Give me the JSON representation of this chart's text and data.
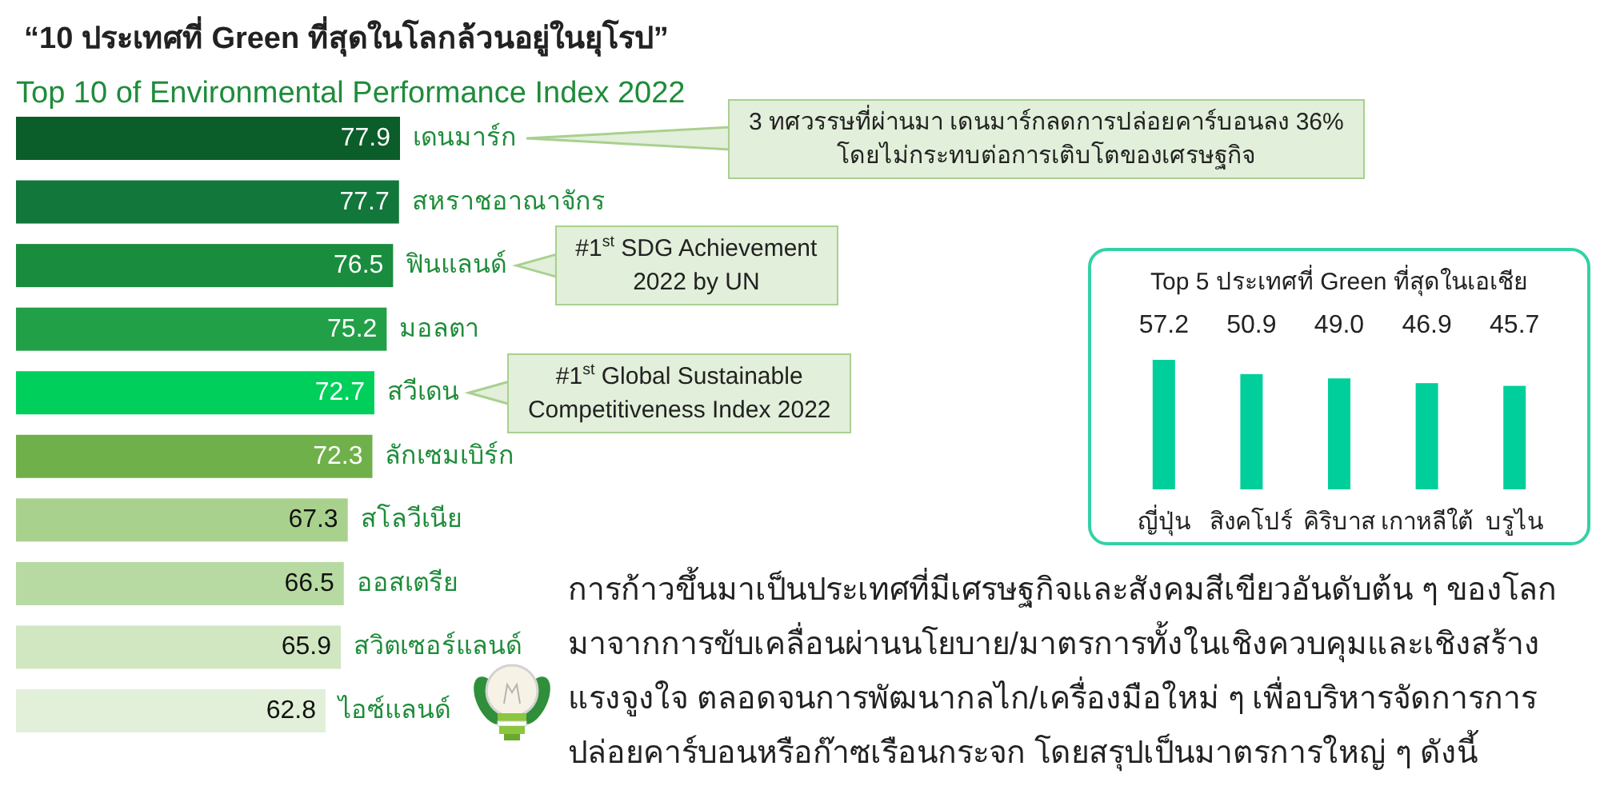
{
  "chart_data": [
    {
      "type": "bar",
      "orientation": "horizontal",
      "title": "“10 ประเทศที่ Green ที่สุดในโลกล้วนอยู่ในยุโรป”",
      "subtitle": "Top 10 of Environmental Performance Index 2022",
      "categories": [
        "เดนมาร์ก",
        "สหราชอาณาจักร",
        "ฟินแลนด์",
        "มอลตา",
        "สวีเดน",
        "ลักเซมเบิร์ก",
        "สโลวีเนีย",
        "ออสเตรีย",
        "สวิตเซอร์แลนด์",
        "ไอซ์แลนด์"
      ],
      "values": [
        77.9,
        77.7,
        76.5,
        75.2,
        72.7,
        72.3,
        67.3,
        66.5,
        65.9,
        62.8
      ],
      "colors": [
        "#0b5d2a",
        "#11773a",
        "#1a8c3e",
        "#21a047",
        "#00d05b",
        "#70b04a",
        "#a9d18e",
        "#b6daa1",
        "#d0e7c1",
        "#e2f0d9"
      ],
      "data_labels": true,
      "annotations": [
        "3 ทศวรรษที่ผ่านมา เดนมาร์กลดการปล่อยคาร์บอนลง 36%\nโดยไม่กระทบต่อการเติบโตของเศรษฐกิจ",
        "#1$^{st}$ SDG Achievement\n2022 by UN",
        "#1$^{st}$ Global Sustainable\nCompetitiveness Index 2022",
        "การก้าวขึ้นมาเป็นประเทศที่มีเศรษฐกิจและสังคมสีเขียวอันดับต้น ๆ ของโลก\nมาจากการขับเคลื่อนผ่านนโยบาย/มาตรการทั้งในเชิงควบคุมและเชิงสร้าง\nแรงจูงใจ ตลอดจนการพัฒนากลไก/เครื่องมือใหม่ ๆ เพื่อบริหารจัดการการ\nปล่อยคาร์บอนหรือก๊าซเรือนกระจก โดยสรุปเป็นมาตรการใหญ่ ๆ ดังนี้"
      ]
    },
    {
      "type": "bar",
      "title": "Top 5 ประเทศที่ Green ที่สุดในเอเชีย",
      "categories": [
        "ญี่ปุ่น",
        "สิงคโปร์",
        "คิริบาส",
        "เกาหลีใต้",
        "บรูไน"
      ],
      "values": [
        57.2,
        50.9,
        49.0,
        46.9,
        45.7
      ],
      "value_labels": [
        "57.2",
        "50.9",
        "49.0",
        "46.9",
        "45.7"
      ],
      "color": "#00cf9b"
    }
  ]
}
